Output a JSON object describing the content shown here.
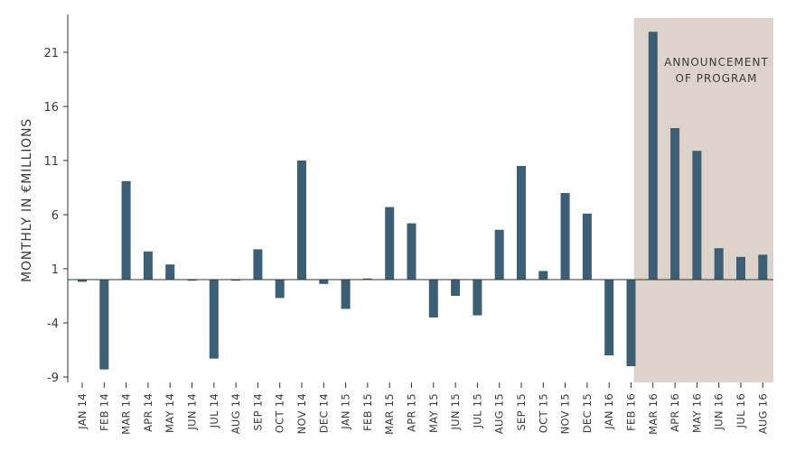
{
  "chart_data": {
    "type": "bar",
    "ylabel": "MONTHLY IN €MILLIONS",
    "ylim": [
      -9.5,
      24
    ],
    "yticks": [
      21,
      16,
      11,
      6,
      1,
      -4,
      -9
    ],
    "categories": [
      "JAN 14",
      "FEB 14",
      "MAR 14",
      "APR 14",
      "MAY 14",
      "JUN 14",
      "JUL 14",
      "AUG 14",
      "SEP 14",
      "OCT 14",
      "NOV 14",
      "DEC 14",
      "JAN 15",
      "FEB 15",
      "MAR 15",
      "APR 15",
      "MAY 15",
      "JUN 15",
      "JUL 15",
      "AUG 15",
      "SEP 15",
      "OCT 15",
      "NOV 15",
      "DEC 15",
      "JAN 16",
      "FEB 16",
      "MAR 16",
      "APR 16",
      "MAY 16",
      "JUN 16",
      "JUL 16",
      "AUG 16"
    ],
    "values": [
      -0.2,
      -8.3,
      9.1,
      2.6,
      1.4,
      -0.1,
      -7.3,
      -0.1,
      2.8,
      -1.7,
      11.0,
      -0.4,
      -2.7,
      0.1,
      6.7,
      5.2,
      -3.5,
      -1.5,
      -3.3,
      4.6,
      10.5,
      0.8,
      8.0,
      6.1,
      -7.0,
      -8.0,
      22.9,
      14.0,
      11.9,
      2.9,
      2.1,
      2.3
    ],
    "bar_color": "#3d5f76",
    "highlight": {
      "from_category": "MAR 16",
      "to_category": "AUG 16",
      "label_lines": [
        "ANNOUNCEMENT",
        "OF PROGRAM"
      ],
      "color": "#ddd3cb"
    },
    "grid": false,
    "legend": "none"
  }
}
